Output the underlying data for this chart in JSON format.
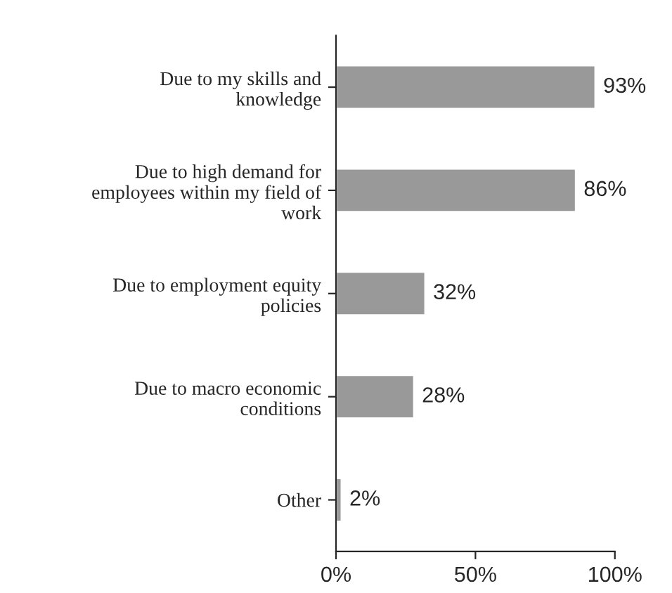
{
  "chart_data": {
    "type": "bar",
    "orientation": "horizontal",
    "categories": [
      "Due to my skills and knowledge",
      "Due to high demand for employees within my field of work",
      "Due to employment equity policies",
      "Due to macro economic conditions",
      "Other"
    ],
    "values": [
      93,
      86,
      32,
      28,
      2
    ],
    "value_labels": [
      "93%",
      "86%",
      "32%",
      "28%",
      "2%"
    ],
    "color": "#999999",
    "xlim": [
      0,
      100
    ],
    "xticks": [
      {
        "value": 0,
        "label": "0%"
      },
      {
        "value": 50,
        "label": "50%"
      },
      {
        "value": 100,
        "label": "100%"
      }
    ],
    "grid": false,
    "legend": false
  }
}
